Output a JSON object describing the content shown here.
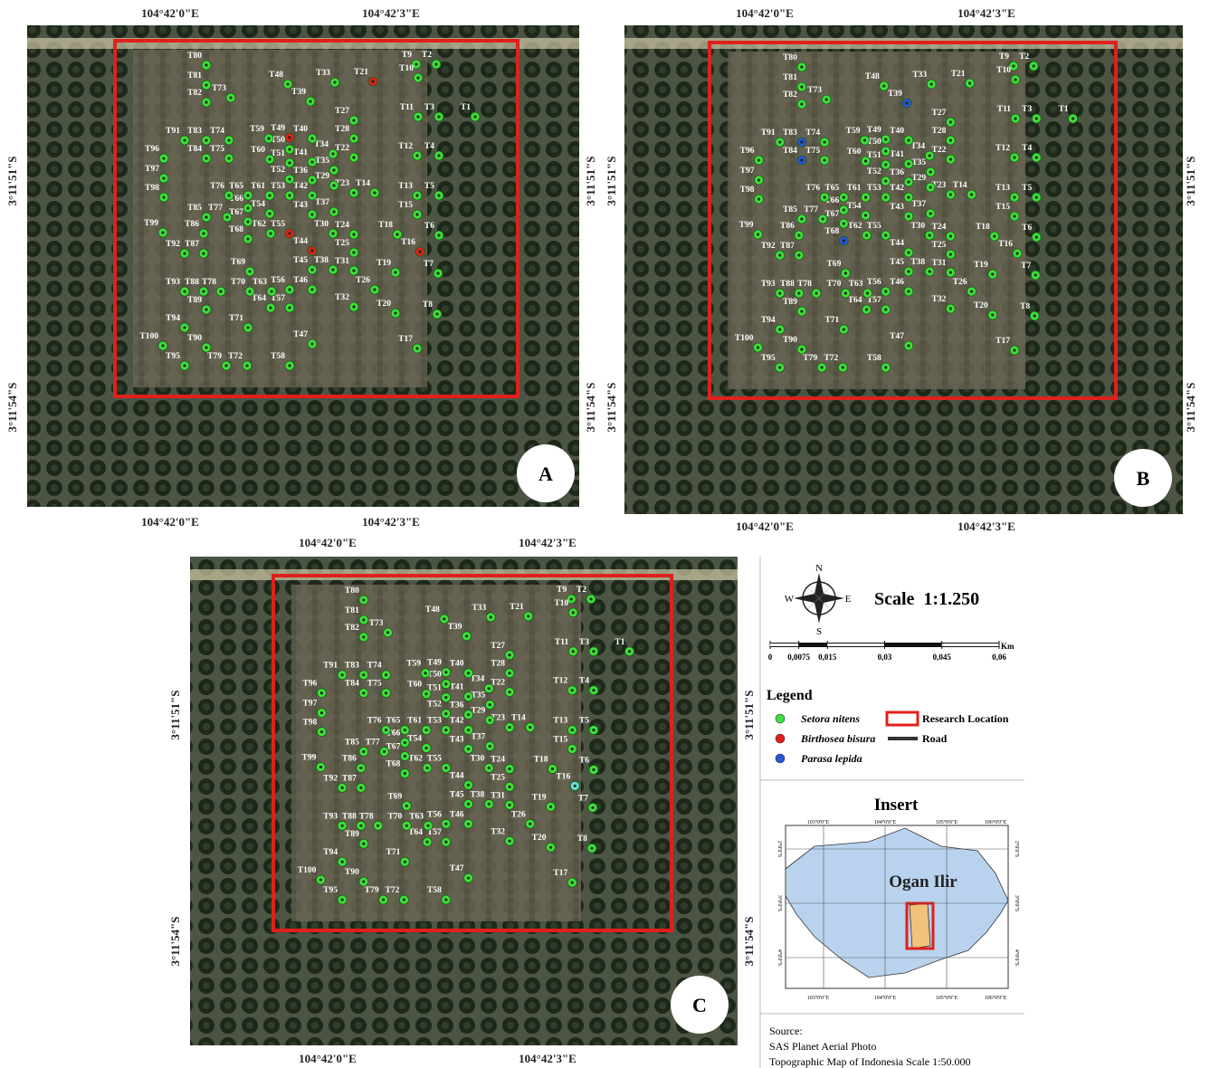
{
  "trees": [
    "T1",
    "T2",
    "T3",
    "T4",
    "T5",
    "T6",
    "T7",
    "T8",
    "T9",
    "T10",
    "T11",
    "T12",
    "T13",
    "T14",
    "T15",
    "T16",
    "T17",
    "T18",
    "T19",
    "T20",
    "T21",
    "T22",
    "T23",
    "T24",
    "T25",
    "T26",
    "T27",
    "T28",
    "T29",
    "T30",
    "T31",
    "T32",
    "T33",
    "T34",
    "T35",
    "T36",
    "T37",
    "T38",
    "T39",
    "T40",
    "T41",
    "T42",
    "T43",
    "T44",
    "T45",
    "T46",
    "T47",
    "T48",
    "T49",
    "T50",
    "T51",
    "T52",
    "T53",
    "T54",
    "T55",
    "T56",
    "T57",
    "T58",
    "T59",
    "T60",
    "T61",
    "T62",
    "T63",
    "T64",
    "T65",
    "T66",
    "T67",
    "T68",
    "T69",
    "T70",
    "T71",
    "T72",
    "T73",
    "T74",
    "T75",
    "T76",
    "T77",
    "T78",
    "T79",
    "T80",
    "T81",
    "T82",
    "T83",
    "T84",
    "T85",
    "T86",
    "T87",
    "T88",
    "T89",
    "T90",
    "T91",
    "T92",
    "T93",
    "T94",
    "T95",
    "T96",
    "T97",
    "T98",
    "T99",
    "T100"
  ],
  "default_color": "#3ee03a",
  "panels": [
    {
      "label": "A",
      "marks": [
        {
          "trees": [
            "T21",
            "T49",
            "T55",
            "T44",
            "T16"
          ],
          "color": "#e0201c"
        }
      ]
    },
    {
      "label": "B",
      "marks": [
        {
          "trees": [
            "T39",
            "T83",
            "T84",
            "T68"
          ],
          "color": "#2456d6"
        }
      ]
    },
    {
      "label": "C",
      "marks": [
        {
          "trees": [
            "T16"
          ],
          "color": "#62e2e2"
        }
      ]
    }
  ],
  "coordinates": {
    "lon": [
      "104°42'0\"E",
      "104°42'3\"E"
    ],
    "lat": [
      "3°11'51\"S",
      "3°11'54\"S"
    ]
  },
  "compass": {
    "n": "N",
    "s": "S",
    "e": "E",
    "w": "W"
  },
  "scale": "Scale  1:1.250",
  "scale_bar": {
    "unit": "Km",
    "lim": [
      0,
      0.06
    ],
    "ticks": [
      0,
      {
        "value": 0.0075,
        "label": "0,0075"
      },
      {
        "value": 0.015,
        "label": "0,015"
      },
      {
        "value": 0.03,
        "label": "0,03"
      },
      {
        "value": 0.045,
        "label": "0,045"
      },
      {
        "value": 0.06,
        "label": "0,06"
      }
    ]
  },
  "legend": {
    "title": "Legend",
    "items": [
      {
        "name": "Setora nitens",
        "color": "#3ee03a"
      },
      {
        "name": "Birthosea bisura",
        "color": "#e0201c"
      },
      {
        "name": "Parasa lepida",
        "color": "#2456d6"
      }
    ],
    "research_location": "Research Location",
    "road": "Road"
  },
  "inset": {
    "title": "Insert",
    "region": "Ogan Ilir",
    "lon_ticks": [
      "103°0'0\"E",
      "104°0'0\"E",
      "105°0'0\"E",
      "106°0'0\"E"
    ],
    "lat_ticks": [
      "2°0'0\"S",
      "3°0'0\"S",
      "4°0'0\"S"
    ]
  },
  "source": {
    "title": "Source:",
    "lines": [
      "SAS Planet Aerial Photo",
      "Topographic Map of Indonesia Scale 1:50.000"
    ]
  }
}
